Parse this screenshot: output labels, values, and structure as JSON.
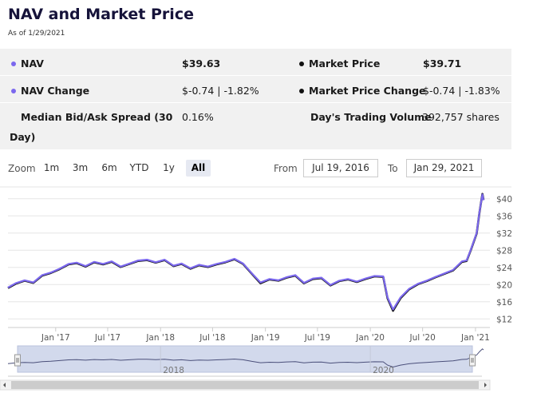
{
  "header": {
    "title": "NAV and Market Price",
    "as_of": "As of 1/29/2021"
  },
  "stats": {
    "nav_label": "NAV",
    "nav_value": "$39.63",
    "market_price_label": "Market Price",
    "market_price_value": "$39.71",
    "nav_change_label": "NAV Change",
    "nav_change_value": "$-0.74 | -1.82%",
    "market_price_change_label": "Market Price Change",
    "market_price_change_value": "$-0.74 | -1.83%",
    "spread_label_line1": "Median Bid/Ask Spread (30",
    "spread_label_line2": "Day)",
    "spread_value": "0.16%",
    "volume_label": "Day's Trading Volume",
    "volume_value": "392,757 shares"
  },
  "range_selector": {
    "zoom_label": "Zoom",
    "buttons": [
      "1m",
      "3m",
      "6m",
      "YTD",
      "1y",
      "All"
    ],
    "active": "All",
    "from_label": "From",
    "from_value": "Jul 19, 2016",
    "to_label": "To",
    "to_value": "Jan 29, 2021"
  },
  "colors": {
    "nav": "#7b68ee",
    "market_price": "#111111",
    "navigator_fill": "#d2d9ec",
    "navigator_line": "#4a4f7a"
  },
  "chart_data": {
    "type": "line",
    "x_ticks": [
      "Jan '17",
      "Jul '17",
      "Jan '18",
      "Jul '18",
      "Jan '19",
      "Jul '19",
      "Jan '20",
      "Jul '20",
      "Jan '21"
    ],
    "y_ticks": [
      "$40",
      "$36",
      "$32",
      "$28",
      "$24",
      "$20",
      "$16",
      "$12"
    ],
    "ylim": [
      10,
      42
    ],
    "xlim": [
      "2016-07-19",
      "2021-01-29"
    ],
    "navigator_labels": [
      "2018",
      "2020"
    ],
    "series": [
      {
        "name": "NAV",
        "x": [
          "2016-07-19",
          "2016-08-15",
          "2016-09-15",
          "2016-10-15",
          "2016-11-15",
          "2016-12-15",
          "2017-01-15",
          "2017-02-15",
          "2017-03-15",
          "2017-04-15",
          "2017-05-15",
          "2017-06-15",
          "2017-07-15",
          "2017-08-15",
          "2017-09-15",
          "2017-10-15",
          "2017-11-15",
          "2017-12-15",
          "2018-01-15",
          "2018-02-15",
          "2018-03-15",
          "2018-04-15",
          "2018-05-15",
          "2018-06-15",
          "2018-07-15",
          "2018-08-15",
          "2018-09-15",
          "2018-10-15",
          "2018-11-15",
          "2018-12-15",
          "2019-01-15",
          "2019-02-15",
          "2019-03-15",
          "2019-04-15",
          "2019-05-15",
          "2019-06-15",
          "2019-07-15",
          "2019-08-15",
          "2019-09-15",
          "2019-10-15",
          "2019-11-15",
          "2019-12-15",
          "2020-01-15",
          "2020-02-15",
          "2020-03-01",
          "2020-03-20",
          "2020-04-15",
          "2020-05-15",
          "2020-06-15",
          "2020-07-15",
          "2020-08-15",
          "2020-09-15",
          "2020-10-15",
          "2020-11-15",
          "2020-12-01",
          "2020-12-15",
          "2021-01-05",
          "2021-01-15",
          "2021-01-25",
          "2021-01-29"
        ],
        "y": [
          19.3,
          20.3,
          21.0,
          20.5,
          22.2,
          22.8,
          23.7,
          24.8,
          25.1,
          24.3,
          25.3,
          24.8,
          25.4,
          24.2,
          24.9,
          25.6,
          25.8,
          25.2,
          25.8,
          24.4,
          24.9,
          23.8,
          24.6,
          24.2,
          24.8,
          25.3,
          26.0,
          24.9,
          22.6,
          20.5,
          21.3,
          21.0,
          21.7,
          22.2,
          20.4,
          21.4,
          21.6,
          19.9,
          20.9,
          21.3,
          20.7,
          21.4,
          22.0,
          21.9,
          17.0,
          14.2,
          17.0,
          19.0,
          20.2,
          20.9,
          21.8,
          22.6,
          23.4,
          25.4,
          25.6,
          28.0,
          32.0,
          37.0,
          41.0,
          39.63
        ]
      },
      {
        "name": "Market Price",
        "x": [
          "2016-07-19",
          "2016-08-15",
          "2016-09-15",
          "2016-10-15",
          "2016-11-15",
          "2016-12-15",
          "2017-01-15",
          "2017-02-15",
          "2017-03-15",
          "2017-04-15",
          "2017-05-15",
          "2017-06-15",
          "2017-07-15",
          "2017-08-15",
          "2017-09-15",
          "2017-10-15",
          "2017-11-15",
          "2017-12-15",
          "2018-01-15",
          "2018-02-15",
          "2018-03-15",
          "2018-04-15",
          "2018-05-15",
          "2018-06-15",
          "2018-07-15",
          "2018-08-15",
          "2018-09-15",
          "2018-10-15",
          "2018-11-15",
          "2018-12-15",
          "2019-01-15",
          "2019-02-15",
          "2019-03-15",
          "2019-04-15",
          "2019-05-15",
          "2019-06-15",
          "2019-07-15",
          "2019-08-15",
          "2019-09-15",
          "2019-10-15",
          "2019-11-15",
          "2019-12-15",
          "2020-01-15",
          "2020-02-15",
          "2020-03-01",
          "2020-03-20",
          "2020-04-15",
          "2020-05-15",
          "2020-06-15",
          "2020-07-15",
          "2020-08-15",
          "2020-09-15",
          "2020-10-15",
          "2020-11-15",
          "2020-12-01",
          "2020-12-15",
          "2021-01-05",
          "2021-01-15",
          "2021-01-25",
          "2021-01-29"
        ],
        "y": [
          19.2,
          20.2,
          20.9,
          20.4,
          22.1,
          22.7,
          23.6,
          24.7,
          25.0,
          24.2,
          25.2,
          24.7,
          25.3,
          24.1,
          24.8,
          25.5,
          25.7,
          25.1,
          25.7,
          24.3,
          24.8,
          23.7,
          24.5,
          24.1,
          24.7,
          25.2,
          25.9,
          24.8,
          22.5,
          20.3,
          21.2,
          20.9,
          21.6,
          22.1,
          20.3,
          21.3,
          21.5,
          19.8,
          20.8,
          21.2,
          20.6,
          21.3,
          21.9,
          21.8,
          16.8,
          13.9,
          16.8,
          18.9,
          20.1,
          20.8,
          21.7,
          22.5,
          23.3,
          25.3,
          25.5,
          27.9,
          31.9,
          36.9,
          41.1,
          39.71
        ]
      }
    ]
  }
}
